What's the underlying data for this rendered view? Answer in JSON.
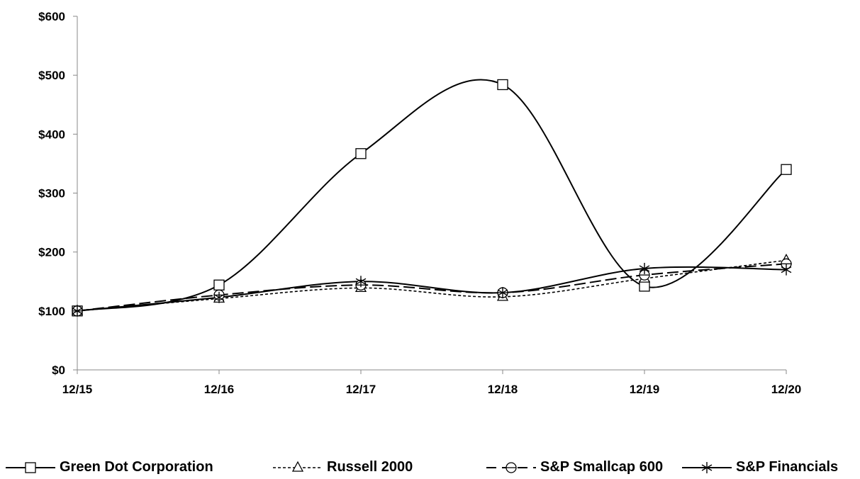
{
  "chart_data": {
    "type": "line",
    "title": "",
    "xlabel": "",
    "ylabel": "",
    "categories": [
      "12/15",
      "12/16",
      "12/17",
      "12/18",
      "12/19",
      "12/20"
    ],
    "ylim": [
      0,
      600
    ],
    "yticks": [
      0,
      100,
      200,
      300,
      400,
      500,
      600
    ],
    "ytick_labels": [
      "$0",
      "$100",
      "$200",
      "$300",
      "$400",
      "$500",
      "$600"
    ],
    "grid": false,
    "legend_position": "bottom",
    "series": [
      {
        "name": "Green Dot Corporation",
        "values": [
          100,
          144,
          367,
          484,
          142,
          340
        ],
        "marker": "square",
        "dash": "solid"
      },
      {
        "name": "Russell 2000",
        "values": [
          100,
          121,
          139,
          124,
          155,
          186
        ],
        "marker": "triangle",
        "dash": "dotted"
      },
      {
        "name": "S&P Smallcap 600",
        "values": [
          100,
          127,
          144,
          131,
          161,
          180
        ],
        "marker": "circle-bar",
        "dash": "longdash"
      },
      {
        "name": "S&P Financials",
        "values": [
          100,
          123,
          150,
          131,
          172,
          170
        ],
        "marker": "star",
        "dash": "solid"
      }
    ]
  }
}
